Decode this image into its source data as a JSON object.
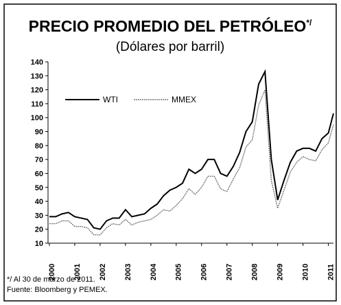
{
  "chart_data": {
    "type": "line",
    "title": "PRECIO PROMEDIO DEL PETRÓLEO",
    "title_note": "*/",
    "subtitle": "(Dólares por barril)",
    "x": [
      2000,
      2000.25,
      2000.5,
      2000.75,
      2001,
      2001.25,
      2001.5,
      2001.75,
      2002,
      2002.25,
      2002.5,
      2002.75,
      2003,
      2003.25,
      2003.5,
      2003.75,
      2004,
      2004.25,
      2004.5,
      2004.75,
      2005,
      2005.25,
      2005.5,
      2005.75,
      2006,
      2006.25,
      2006.5,
      2006.75,
      2007,
      2007.25,
      2007.5,
      2007.75,
      2008,
      2008.25,
      2008.5,
      2008.75,
      2009,
      2009.25,
      2009.5,
      2009.75,
      2010,
      2010.25,
      2010.5,
      2010.75,
      2011,
      2011.2
    ],
    "series": [
      {
        "name": "WTI",
        "color": "#000000",
        "values": [
          29,
          29,
          31,
          32,
          29,
          28,
          27,
          21,
          20,
          26,
          28,
          28,
          34,
          29,
          30,
          31,
          35,
          38,
          44,
          48,
          50,
          53,
          63,
          60,
          63,
          70,
          70,
          60,
          58,
          65,
          75,
          90,
          97,
          124,
          133,
          70,
          41,
          55,
          68,
          76,
          78,
          78,
          76,
          85,
          89,
          103
        ]
      },
      {
        "name": "MMEX",
        "color": "#777777",
        "values": [
          24,
          24,
          26,
          26,
          22,
          22,
          21,
          16,
          16,
          21,
          24,
          23,
          27,
          23,
          25,
          26,
          27,
          30,
          34,
          33,
          37,
          42,
          49,
          45,
          50,
          58,
          58,
          49,
          47,
          56,
          64,
          79,
          84,
          109,
          120,
          55,
          35,
          48,
          61,
          68,
          72,
          70,
          69,
          77,
          82,
          95
        ]
      }
    ],
    "xlim": [
      2000,
      2011.2
    ],
    "xticks": [
      2000,
      2001,
      2002,
      2003,
      2004,
      2005,
      2006,
      2007,
      2008,
      2009,
      2010,
      2011
    ],
    "ylim": [
      10,
      140
    ],
    "yticks": [
      10,
      20,
      30,
      40,
      50,
      60,
      70,
      80,
      90,
      100,
      110,
      120,
      130,
      140
    ],
    "grid": false,
    "footnotes": [
      "*/ Al 30 de marzo de 2011.",
      "Fuente: Bloomberg y PEMEX."
    ]
  }
}
